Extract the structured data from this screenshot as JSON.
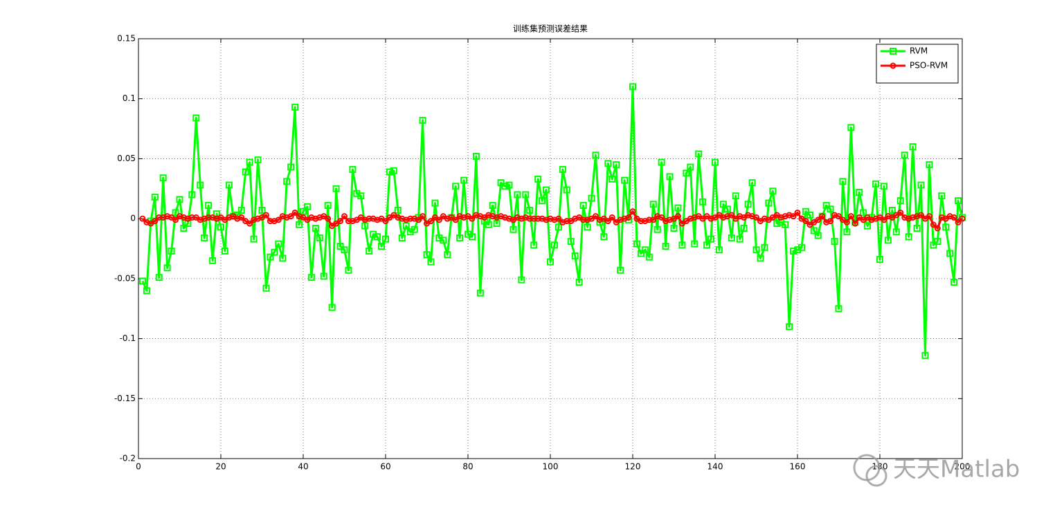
{
  "chart_data": {
    "type": "line",
    "title": "训练集预测误差结果",
    "x": [
      1,
      2,
      3,
      4,
      5,
      6,
      7,
      8,
      9,
      10,
      11,
      12,
      13,
      14,
      15,
      16,
      17,
      18,
      19,
      20,
      21,
      22,
      23,
      24,
      25,
      26,
      27,
      28,
      29,
      30,
      31,
      32,
      33,
      34,
      35,
      36,
      37,
      38,
      39,
      40,
      41,
      42,
      43,
      44,
      45,
      46,
      47,
      48,
      49,
      50,
      51,
      52,
      53,
      54,
      55,
      56,
      57,
      58,
      59,
      60,
      61,
      62,
      63,
      64,
      65,
      66,
      67,
      68,
      69,
      70,
      71,
      72,
      73,
      74,
      75,
      76,
      77,
      78,
      79,
      80,
      81,
      82,
      83,
      84,
      85,
      86,
      87,
      88,
      89,
      90,
      91,
      92,
      93,
      94,
      95,
      96,
      97,
      98,
      99,
      100,
      101,
      102,
      103,
      104,
      105,
      106,
      107,
      108,
      109,
      110,
      111,
      112,
      113,
      114,
      115,
      116,
      117,
      118,
      119,
      120,
      121,
      122,
      123,
      124,
      125,
      126,
      127,
      128,
      129,
      130,
      131,
      132,
      133,
      134,
      135,
      136,
      137,
      138,
      139,
      140,
      141,
      142,
      143,
      144,
      145,
      146,
      147,
      148,
      149,
      150,
      151,
      152,
      153,
      154,
      155,
      156,
      157,
      158,
      159,
      160,
      161,
      162,
      163,
      164,
      165,
      166,
      167,
      168,
      169,
      170,
      171,
      172,
      173,
      174,
      175,
      176,
      177,
      178,
      179,
      180,
      181,
      182,
      183,
      184,
      185,
      186,
      187,
      188,
      189,
      190,
      191,
      192,
      193,
      194,
      195,
      196,
      197,
      198,
      199,
      200
    ],
    "series": [
      {
        "name": "RVM",
        "color": "#00ff00",
        "marker": "square",
        "values": [
          -0.052,
          -0.06,
          -0.002,
          0.018,
          -0.049,
          0.034,
          -0.041,
          -0.027,
          0.005,
          0.016,
          -0.008,
          -0.004,
          0.02,
          0.084,
          0.028,
          -0.016,
          0.011,
          -0.035,
          0.004,
          -0.007,
          -0.027,
          0.028,
          0.002,
          0.003,
          0.007,
          0.039,
          0.047,
          -0.017,
          0.049,
          0.007,
          -0.058,
          -0.032,
          -0.028,
          -0.021,
          -0.033,
          0.031,
          0.043,
          0.093,
          -0.005,
          0.006,
          0.01,
          -0.049,
          -0.008,
          -0.016,
          -0.048,
          0.011,
          -0.074,
          0.025,
          -0.023,
          -0.026,
          -0.043,
          0.041,
          0.021,
          0.019,
          -0.006,
          -0.027,
          -0.013,
          -0.015,
          -0.023,
          -0.017,
          0.039,
          0.04,
          0.007,
          -0.016,
          -0.006,
          -0.011,
          -0.009,
          0.001,
          0.082,
          -0.03,
          -0.036,
          0.013,
          -0.016,
          -0.018,
          -0.03,
          0.001,
          0.027,
          -0.016,
          0.032,
          -0.013,
          -0.015,
          0.052,
          -0.062,
          -0.002,
          -0.005,
          0.011,
          -0.004,
          0.03,
          0.027,
          0.028,
          -0.009,
          0.02,
          -0.051,
          0.02,
          0.007,
          -0.022,
          0.033,
          0.015,
          0.024,
          -0.036,
          -0.022,
          -0.007,
          0.041,
          0.024,
          -0.019,
          -0.031,
          -0.053,
          0.011,
          -0.007,
          0.017,
          0.053,
          -0.003,
          -0.015,
          0.046,
          0.033,
          0.045,
          -0.043,
          0.032,
          -0.001,
          0.11,
          -0.021,
          -0.029,
          -0.026,
          -0.032,
          0.012,
          -0.009,
          0.047,
          -0.023,
          0.035,
          -0.008,
          0.009,
          -0.022,
          0.038,
          0.043,
          -0.021,
          0.054,
          0.014,
          -0.022,
          -0.017,
          0.047,
          -0.026,
          0.012,
          0.008,
          -0.016,
          0.019,
          -0.017,
          -0.008,
          0.012,
          0.03,
          -0.026,
          -0.033,
          -0.024,
          0.013,
          0.023,
          -0.004,
          -0.003,
          -0.005,
          -0.09,
          -0.027,
          -0.026,
          -0.024,
          0.006,
          0.003,
          -0.01,
          -0.014,
          0.002,
          0.011,
          0.008,
          -0.019,
          -0.075,
          0.031,
          -0.011,
          0.076,
          -0.003,
          0.022,
          0.005,
          -0.006,
          0.001,
          0.029,
          -0.034,
          0.027,
          -0.018,
          0.007,
          -0.011,
          0.015,
          0.053,
          -0.015,
          0.06,
          -0.008,
          0.028,
          -0.114,
          0.045,
          -0.022,
          -0.019,
          0.019,
          -0.007,
          -0.029,
          -0.053,
          0.015,
          0.001
        ]
      },
      {
        "name": "PSO-RVM",
        "color": "#ff0000",
        "marker": "circle",
        "values": [
          0,
          -0.003,
          -0.004,
          -0.002,
          0.001,
          0.001,
          0.002,
          0.001,
          -0.001,
          0.002,
          0.001,
          0,
          0.001,
          0.001,
          -0.001,
          0,
          0.001,
          0.001,
          0,
          0.001,
          -0.001,
          0.001,
          0.002,
          0,
          0.001,
          -0.002,
          -0.004,
          -0.001,
          0,
          0.001,
          0.003,
          -0.002,
          -0.002,
          -0.001,
          0.002,
          0.001,
          0.002,
          0.005,
          0.002,
          0.001,
          -0.001,
          0.001,
          0,
          0.001,
          0.002,
          0,
          -0.006,
          -0.004,
          -0.002,
          0.002,
          -0.002,
          -0.002,
          -0.001,
          0.001,
          -0.001,
          0,
          0,
          -0.001,
          0,
          -0.002,
          0.001,
          0.003,
          0.001,
          0,
          -0.001,
          0,
          0,
          -0.001,
          0.002,
          -0.004,
          -0.002,
          0.001,
          -0.001,
          0.002,
          0,
          0.001,
          -0.001,
          0.002,
          0.001,
          0.002,
          0,
          0.003,
          0.002,
          0.001,
          0.003,
          0.002,
          0.001,
          0.002,
          0.001,
          0,
          -0.001,
          0.001,
          0,
          0.001,
          0,
          0,
          0,
          0,
          -0.001,
          0,
          -0.001,
          0,
          -0.003,
          -0.002,
          -0.002,
          0,
          0.001,
          -0.001,
          -0.001,
          0,
          0.002,
          -0.001,
          0,
          -0.002,
          0.001,
          -0.003,
          -0.001,
          0,
          0.001,
          0.006,
          0,
          -0.002,
          -0.002,
          -0.001,
          -0.001,
          0.002,
          0.001,
          -0.002,
          -0.001,
          0,
          0.002,
          -0.004,
          -0.002,
          0,
          0.001,
          0.002,
          0,
          0.002,
          0,
          0.001,
          0.003,
          0.001,
          0.002,
          0.003,
          0,
          0.002,
          0.001,
          0.003,
          0.002,
          0.001,
          -0.002,
          0,
          -0.001,
          0.001,
          0.003,
          0.001,
          0.002,
          0.003,
          0.002,
          0.005,
          0,
          -0.002,
          -0.005,
          -0.003,
          -0.001,
          0.002,
          -0.003,
          -0.002,
          0.003,
          0.002,
          -0.001,
          -0.003,
          0.002,
          -0.004,
          0.001,
          -0.001,
          0.001,
          -0.001,
          0,
          0.001,
          -0.001,
          0.002,
          0.001,
          0.003,
          0.005,
          0.001,
          0,
          0.001,
          0.002,
          0.003,
          0,
          0.002,
          -0.005,
          -0.008,
          0.001,
          0,
          0.002,
          0.001,
          -0.003,
          0
        ]
      }
    ],
    "xlim": [
      0,
      200
    ],
    "ylim": [
      -0.2,
      0.15
    ],
    "xticks": [
      0,
      20,
      40,
      60,
      80,
      100,
      120,
      140,
      160,
      180,
      200
    ],
    "yticks": [
      -0.2,
      -0.15,
      -0.1,
      -0.05,
      0,
      0.05,
      0.1,
      0.15
    ],
    "grid": true,
    "legend": "upper right"
  },
  "watermark": "天天Matlab"
}
